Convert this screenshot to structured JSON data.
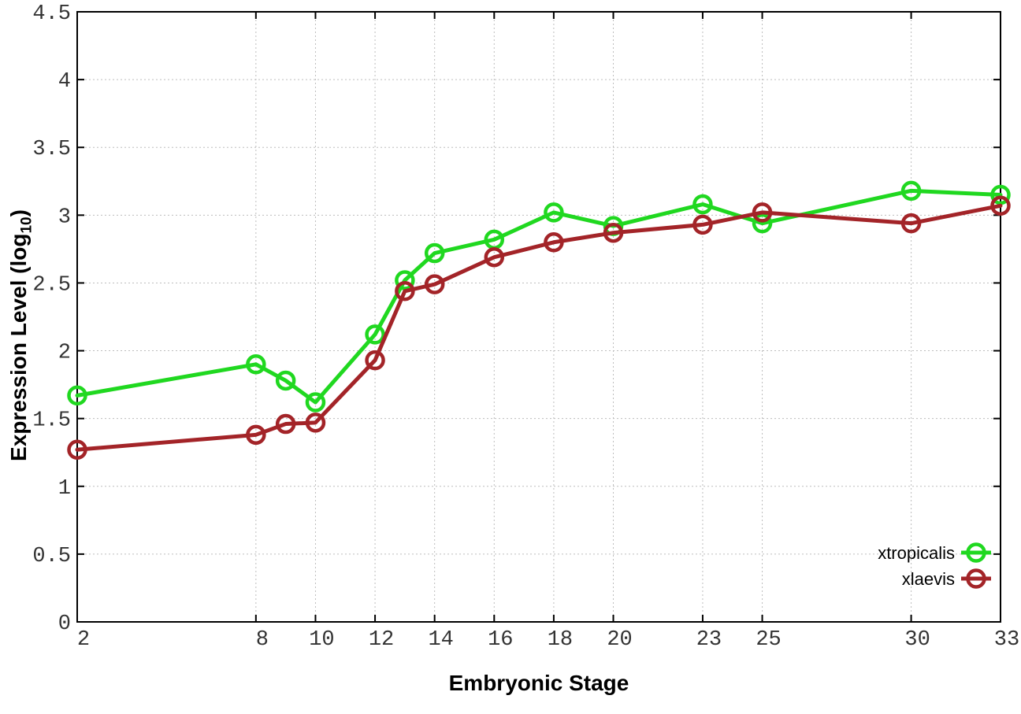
{
  "chart_data": {
    "type": "line",
    "title": "",
    "xlabel": "Embryonic Stage",
    "ylabel_main": "Expression Level (log",
    "ylabel_sub": "10",
    "ylabel_close": ")",
    "xlim": [
      2,
      33
    ],
    "ylim": [
      0,
      4.5
    ],
    "grid": true,
    "legend_position": "inside-right-lower",
    "x_ticks": [
      2,
      8,
      10,
      12,
      14,
      16,
      18,
      20,
      23,
      25,
      30,
      33
    ],
    "x_tick_labels": [
      "2",
      "8",
      "10",
      "12",
      "14",
      "16",
      "18",
      "20",
      "23",
      "25",
      "30",
      "33"
    ],
    "y_ticks": [
      0,
      0.5,
      1,
      1.5,
      2,
      2.5,
      3,
      3.5,
      4,
      4.5
    ],
    "y_tick_labels": [
      "0",
      "0.5",
      "1",
      "1.5",
      "2",
      "2.5",
      "3",
      "3.5",
      "4",
      "4.5"
    ],
    "x": [
      2,
      8,
      9,
      10,
      12,
      13,
      14,
      16,
      18,
      20,
      23,
      25,
      30,
      33
    ],
    "series": [
      {
        "name": "xtropicalis",
        "color": "#20d820",
        "values": [
          1.67,
          1.9,
          1.78,
          1.62,
          2.12,
          2.52,
          2.72,
          2.82,
          3.02,
          2.92,
          3.08,
          2.94,
          3.18,
          3.15
        ]
      },
      {
        "name": "xlaevis",
        "color": "#a32428",
        "values": [
          1.27,
          1.38,
          1.46,
          1.47,
          1.93,
          2.44,
          2.49,
          2.69,
          2.8,
          2.87,
          2.93,
          3.02,
          2.94,
          3.07
        ]
      }
    ],
    "colors": {
      "axis": "#000000",
      "grid": "#bdbdbd",
      "tick_label": "#333333",
      "legend_text": "#000000",
      "background": "#ffffff"
    }
  }
}
